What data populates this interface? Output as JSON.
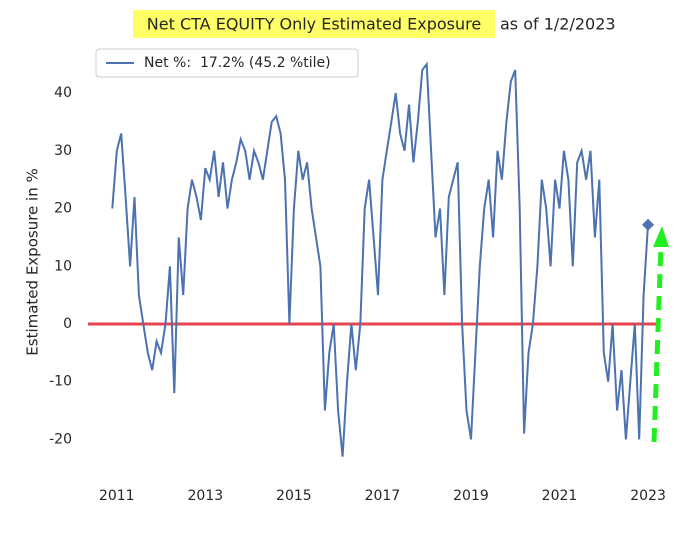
{
  "chart_data": {
    "type": "line",
    "title": "Net CTA EQUITY Only Estimated Exposure",
    "title_suffix": "as of 1/2/2023",
    "y_label": "Estimated Exposure in %",
    "x": [
      2010.9,
      2011.0,
      2011.1,
      2011.2,
      2011.3,
      2011.4,
      2011.5,
      2011.6,
      2011.7,
      2011.8,
      2011.9,
      2012.0,
      2012.1,
      2012.2,
      2012.3,
      2012.4,
      2012.5,
      2012.6,
      2012.7,
      2012.8,
      2012.9,
      2013.0,
      2013.1,
      2013.2,
      2013.3,
      2013.4,
      2013.5,
      2013.6,
      2013.7,
      2013.8,
      2013.9,
      2014.0,
      2014.1,
      2014.2,
      2014.3,
      2014.4,
      2014.5,
      2014.6,
      2014.7,
      2014.8,
      2014.9,
      2015.0,
      2015.1,
      2015.2,
      2015.3,
      2015.4,
      2015.5,
      2015.6,
      2015.7,
      2015.8,
      2015.9,
      2016.0,
      2016.1,
      2016.2,
      2016.3,
      2016.4,
      2016.5,
      2016.6,
      2016.7,
      2016.8,
      2016.9,
      2017.0,
      2017.1,
      2017.2,
      2017.3,
      2017.4,
      2017.5,
      2017.6,
      2017.7,
      2017.8,
      2017.9,
      2018.0,
      2018.1,
      2018.2,
      2018.3,
      2018.4,
      2018.5,
      2018.6,
      2018.7,
      2018.8,
      2018.9,
      2019.0,
      2019.1,
      2019.2,
      2019.3,
      2019.4,
      2019.5,
      2019.6,
      2019.7,
      2019.8,
      2019.9,
      2020.0,
      2020.1,
      2020.2,
      2020.3,
      2020.4,
      2020.5,
      2020.6,
      2020.7,
      2020.8,
      2020.9,
      2021.0,
      2021.1,
      2021.2,
      2021.3,
      2021.4,
      2021.5,
      2021.6,
      2021.7,
      2021.8,
      2021.9,
      2022.0,
      2022.1,
      2022.2,
      2022.3,
      2022.4,
      2022.5,
      2022.6,
      2022.7,
      2022.8,
      2022.9,
      2023.0
    ],
    "series": [
      {
        "name": "Net %:  17.2% (45.2 %tile)",
        "color": "#4c72b0",
        "values": [
          20,
          30,
          33,
          22,
          10,
          22,
          5,
          0,
          -5,
          -8,
          -3,
          -5,
          0,
          10,
          -12,
          15,
          5,
          20,
          25,
          22,
          18,
          27,
          25,
          30,
          22,
          28,
          20,
          25,
          28,
          32,
          30,
          25,
          30,
          28,
          25,
          30,
          35,
          36,
          33,
          25,
          0,
          20,
          30,
          25,
          28,
          20,
          15,
          10,
          -15,
          -5,
          0,
          -15,
          -23,
          -10,
          0,
          -8,
          0,
          20,
          25,
          15,
          5,
          25,
          30,
          35,
          40,
          33,
          30,
          38,
          28,
          35,
          44,
          45,
          30,
          15,
          20,
          5,
          22,
          25,
          28,
          0,
          -15,
          -20,
          -5,
          10,
          20,
          25,
          15,
          30,
          25,
          35,
          42,
          44,
          20,
          -19,
          -5,
          0,
          10,
          25,
          20,
          10,
          25,
          20,
          30,
          25,
          10,
          28,
          30,
          25,
          30,
          15,
          25,
          -5,
          -10,
          0,
          -15,
          -8,
          -20,
          -10,
          0,
          -20,
          5,
          17.2
        ]
      }
    ],
    "zero_line_color": "#e8434f",
    "xlim": [
      2010.35,
      2023.27
    ],
    "xticks": [
      2011,
      2013,
      2015,
      2017,
      2019,
      2021,
      2023
    ],
    "ylim": [
      -25.3,
      46.6
    ],
    "yticks": [
      -20,
      -10,
      0,
      10,
      20,
      30,
      40
    ],
    "legend": "upper left",
    "grid": false
  }
}
